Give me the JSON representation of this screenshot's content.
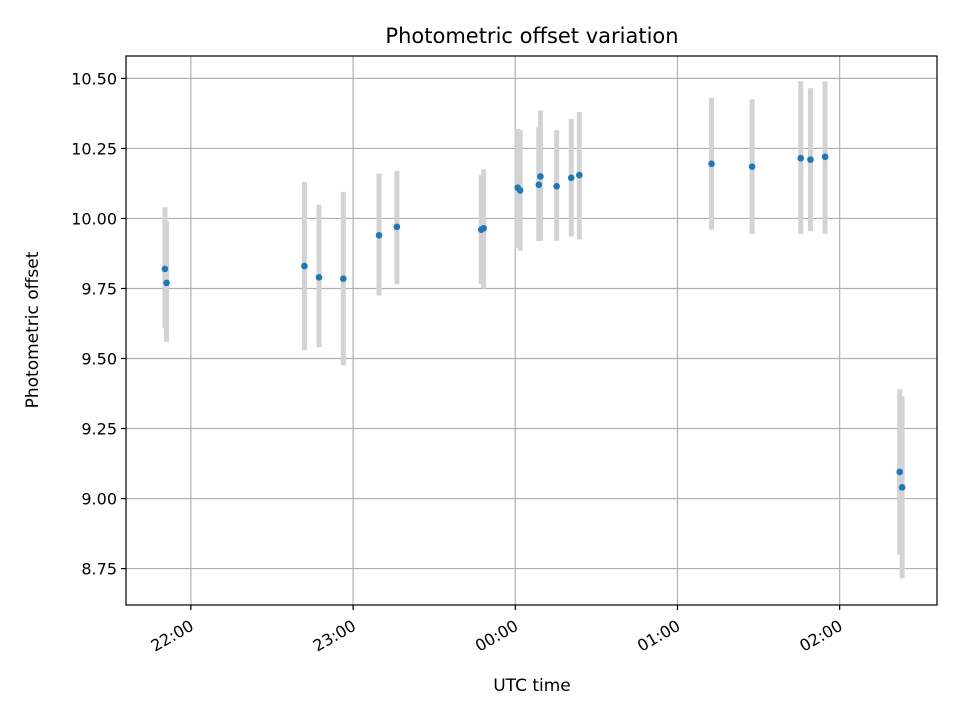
{
  "chart_data": {
    "type": "scatter",
    "title": "Photometric offset variation",
    "xlabel": "UTC time",
    "ylabel": "Photometric offset",
    "x_axis": "time (UTC, hours past midnight; negative = previous evening)",
    "xlim": [
      -2.4,
      2.6
    ],
    "ylim": [
      8.62,
      10.58
    ],
    "grid": true,
    "x_ticks": [
      {
        "value": -2,
        "label": "22:00"
      },
      {
        "value": -1,
        "label": "23:00"
      },
      {
        "value": 0,
        "label": "00:00"
      },
      {
        "value": 1,
        "label": "01:00"
      },
      {
        "value": 2,
        "label": "02:00"
      }
    ],
    "y_ticks": [
      {
        "value": 8.75,
        "label": "8.75"
      },
      {
        "value": 9.0,
        "label": "9.00"
      },
      {
        "value": 9.25,
        "label": "9.25"
      },
      {
        "value": 9.5,
        "label": "9.50"
      },
      {
        "value": 9.75,
        "label": "9.75"
      },
      {
        "value": 10.0,
        "label": "10.00"
      },
      {
        "value": 10.25,
        "label": "10.25"
      },
      {
        "value": 10.5,
        "label": "10.50"
      }
    ],
    "marker_color": "#1f77b4",
    "errorbar_color": "#d3d3d3",
    "points": [
      {
        "x": -2.16,
        "y": 9.82,
        "ylow": 9.61,
        "yhigh": 10.04
      },
      {
        "x": -2.15,
        "y": 9.77,
        "ylow": 9.56,
        "yhigh": 9.99
      },
      {
        "x": -1.3,
        "y": 9.83,
        "ylow": 9.53,
        "yhigh": 10.13
      },
      {
        "x": -1.21,
        "y": 9.79,
        "ylow": 9.54,
        "yhigh": 10.05
      },
      {
        "x": -1.06,
        "y": 9.785,
        "ylow": 9.475,
        "yhigh": 10.095
      },
      {
        "x": -0.84,
        "y": 9.94,
        "ylow": 9.725,
        "yhigh": 10.16
      },
      {
        "x": -0.73,
        "y": 9.97,
        "ylow": 9.765,
        "yhigh": 10.17
      },
      {
        "x": -0.21,
        "y": 9.96,
        "ylow": 9.765,
        "yhigh": 10.155
      },
      {
        "x": -0.195,
        "y": 9.965,
        "ylow": 9.75,
        "yhigh": 10.175
      },
      {
        "x": 0.015,
        "y": 10.11,
        "ylow": 9.895,
        "yhigh": 10.32
      },
      {
        "x": 0.03,
        "y": 10.1,
        "ylow": 9.885,
        "yhigh": 10.315
      },
      {
        "x": 0.145,
        "y": 10.12,
        "ylow": 9.92,
        "yhigh": 10.325
      },
      {
        "x": 0.155,
        "y": 10.15,
        "ylow": 9.92,
        "yhigh": 10.385
      },
      {
        "x": 0.255,
        "y": 10.115,
        "ylow": 9.92,
        "yhigh": 10.315
      },
      {
        "x": 0.345,
        "y": 10.145,
        "ylow": 9.935,
        "yhigh": 10.355
      },
      {
        "x": 0.395,
        "y": 10.155,
        "ylow": 9.925,
        "yhigh": 10.38
      },
      {
        "x": 1.21,
        "y": 10.195,
        "ylow": 9.96,
        "yhigh": 10.43
      },
      {
        "x": 1.46,
        "y": 10.185,
        "ylow": 9.945,
        "yhigh": 10.425
      },
      {
        "x": 1.76,
        "y": 10.215,
        "ylow": 9.945,
        "yhigh": 10.49
      },
      {
        "x": 1.82,
        "y": 10.21,
        "ylow": 9.955,
        "yhigh": 10.465
      },
      {
        "x": 1.91,
        "y": 10.22,
        "ylow": 9.945,
        "yhigh": 10.49
      },
      {
        "x": 2.37,
        "y": 9.095,
        "ylow": 8.8,
        "yhigh": 9.39
      },
      {
        "x": 2.385,
        "y": 9.04,
        "ylow": 8.715,
        "yhigh": 9.365
      }
    ]
  }
}
